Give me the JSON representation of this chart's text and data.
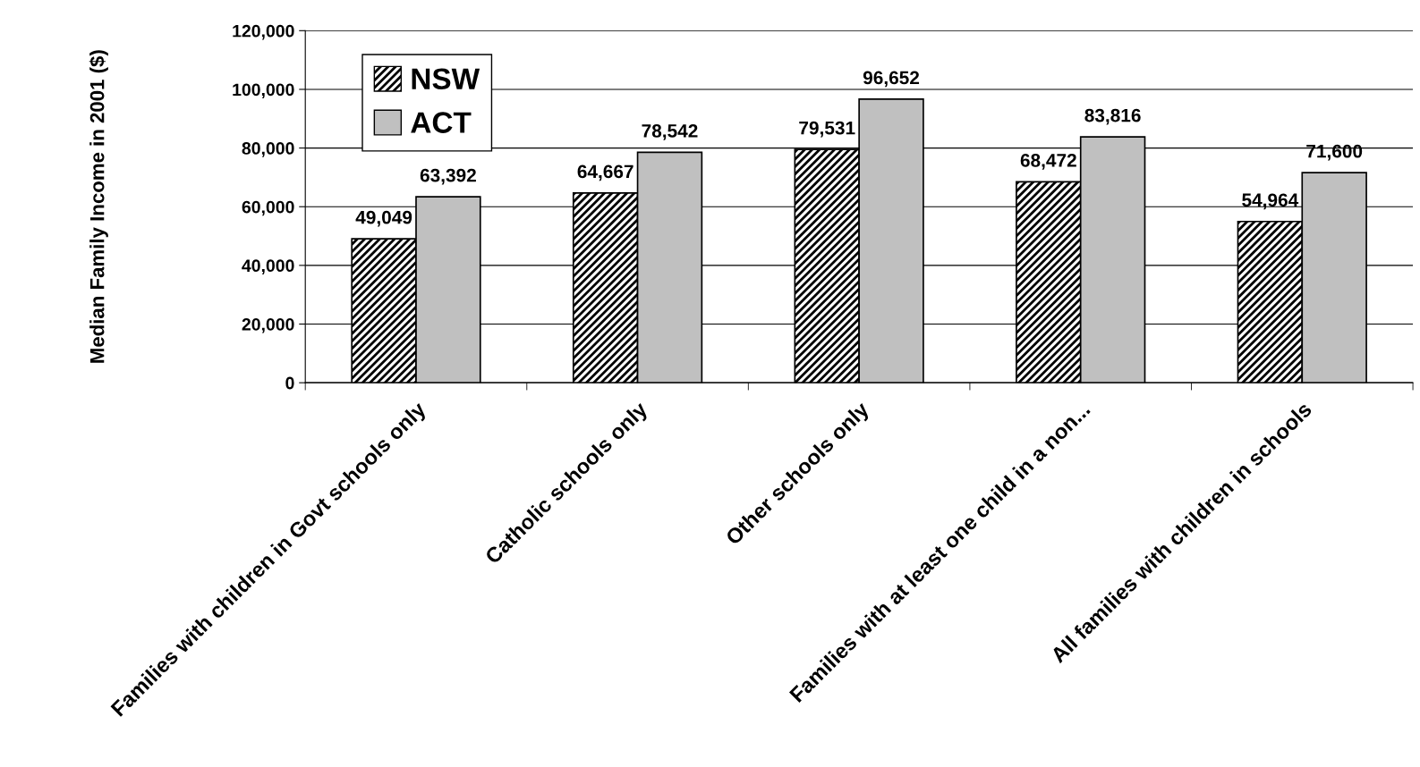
{
  "chart_data": {
    "type": "bar",
    "ylabel": "Median Family Income in 2001 ($)",
    "categories": [
      "Families with children in Govt schools only",
      "Catholic schools only",
      "Other schools only",
      "Families with at least one child in a non...",
      "All families with children in schools"
    ],
    "series": [
      {
        "name": "NSW",
        "color": "#000000",
        "values": [
          49049,
          64667,
          79531,
          68472,
          54964
        ],
        "value_labels": [
          "49,049",
          "64,667",
          "79,531",
          "68,472",
          "54,964"
        ]
      },
      {
        "name": "ACT",
        "color": "#c0c0c0",
        "values": [
          63392,
          78542,
          96652,
          83816,
          71600
        ],
        "value_labels": [
          "63,392",
          "78,542",
          "96,652",
          "83,816",
          "71,600"
        ]
      }
    ],
    "ylim": [
      0,
      120000
    ],
    "yticks": [
      0,
      {
        "value": 20000,
        "label": "20,000"
      },
      {
        "value": 40000,
        "label": "40,000"
      },
      {
        "value": 60000,
        "label": "60,000"
      },
      {
        "value": 80000,
        "label": "80,000"
      },
      {
        "value": 100000,
        "label": "100,000"
      },
      {
        "value": 120000,
        "label": "120,000"
      }
    ],
    "grid": "y",
    "legend": "top left"
  }
}
